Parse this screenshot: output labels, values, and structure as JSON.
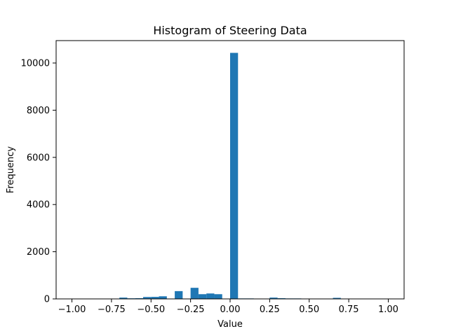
{
  "chart_data": {
    "type": "bar",
    "title": "Histogram of Steering Data",
    "xlabel": "Value",
    "ylabel": "Frequency",
    "xlim": [
      -1.1,
      1.1
    ],
    "ylim": [
      0,
      10950
    ],
    "x_ticks": [
      -1.0,
      -0.75,
      -0.5,
      -0.25,
      0.0,
      0.25,
      0.5,
      0.75,
      1.0
    ],
    "x_tick_labels": [
      "−1.00",
      "−0.75",
      "−0.50",
      "−0.25",
      "0.00",
      "0.25",
      "0.50",
      "0.75",
      "1.00"
    ],
    "y_ticks": [
      0,
      2000,
      4000,
      6000,
      8000,
      10000
    ],
    "y_tick_labels": [
      "0",
      "2000",
      "4000",
      "6000",
      "8000",
      "10000"
    ],
    "grid": false,
    "bar_color": "#1f77b4",
    "bins": [
      {
        "x0": -1.0,
        "x1": -0.95,
        "value": 0
      },
      {
        "x0": -0.95,
        "x1": -0.9,
        "value": 0
      },
      {
        "x0": -0.9,
        "x1": -0.85,
        "value": 0
      },
      {
        "x0": -0.85,
        "x1": -0.8,
        "value": 0
      },
      {
        "x0": -0.8,
        "x1": -0.75,
        "value": 0
      },
      {
        "x0": -0.75,
        "x1": -0.7,
        "value": 5
      },
      {
        "x0": -0.7,
        "x1": -0.65,
        "value": 55
      },
      {
        "x0": -0.65,
        "x1": -0.6,
        "value": 25
      },
      {
        "x0": -0.6,
        "x1": -0.55,
        "value": 30
      },
      {
        "x0": -0.55,
        "x1": -0.5,
        "value": 80
      },
      {
        "x0": -0.5,
        "x1": -0.45,
        "value": 85
      },
      {
        "x0": -0.45,
        "x1": -0.4,
        "value": 110
      },
      {
        "x0": -0.4,
        "x1": -0.35,
        "value": 10
      },
      {
        "x0": -0.35,
        "x1": -0.3,
        "value": 330
      },
      {
        "x0": -0.3,
        "x1": -0.25,
        "value": 15
      },
      {
        "x0": -0.25,
        "x1": -0.2,
        "value": 470
      },
      {
        "x0": -0.2,
        "x1": -0.15,
        "value": 200
      },
      {
        "x0": -0.15,
        "x1": -0.1,
        "value": 230
      },
      {
        "x0": -0.1,
        "x1": -0.05,
        "value": 200
      },
      {
        "x0": -0.05,
        "x1": 0.0,
        "value": 0
      },
      {
        "x0": 0.0,
        "x1": 0.05,
        "value": 10430
      },
      {
        "x0": 0.05,
        "x1": 0.1,
        "value": 20
      },
      {
        "x0": 0.1,
        "x1": 0.15,
        "value": 20
      },
      {
        "x0": 0.15,
        "x1": 0.2,
        "value": 15
      },
      {
        "x0": 0.2,
        "x1": 0.25,
        "value": 0
      },
      {
        "x0": 0.25,
        "x1": 0.3,
        "value": 55
      },
      {
        "x0": 0.3,
        "x1": 0.35,
        "value": 30
      },
      {
        "x0": 0.35,
        "x1": 0.4,
        "value": 20
      },
      {
        "x0": 0.4,
        "x1": 0.45,
        "value": 20
      },
      {
        "x0": 0.45,
        "x1": 0.5,
        "value": 5
      },
      {
        "x0": 0.5,
        "x1": 0.55,
        "value": 5
      },
      {
        "x0": 0.55,
        "x1": 0.6,
        "value": 5
      },
      {
        "x0": 0.6,
        "x1": 0.65,
        "value": 5
      },
      {
        "x0": 0.65,
        "x1": 0.7,
        "value": 45
      },
      {
        "x0": 0.7,
        "x1": 0.75,
        "value": 5
      },
      {
        "x0": 0.75,
        "x1": 0.8,
        "value": 0
      },
      {
        "x0": 0.8,
        "x1": 0.85,
        "value": 0
      },
      {
        "x0": 0.85,
        "x1": 0.9,
        "value": 0
      },
      {
        "x0": 0.9,
        "x1": 0.95,
        "value": 0
      },
      {
        "x0": 0.95,
        "x1": 1.0,
        "value": 0
      }
    ]
  }
}
